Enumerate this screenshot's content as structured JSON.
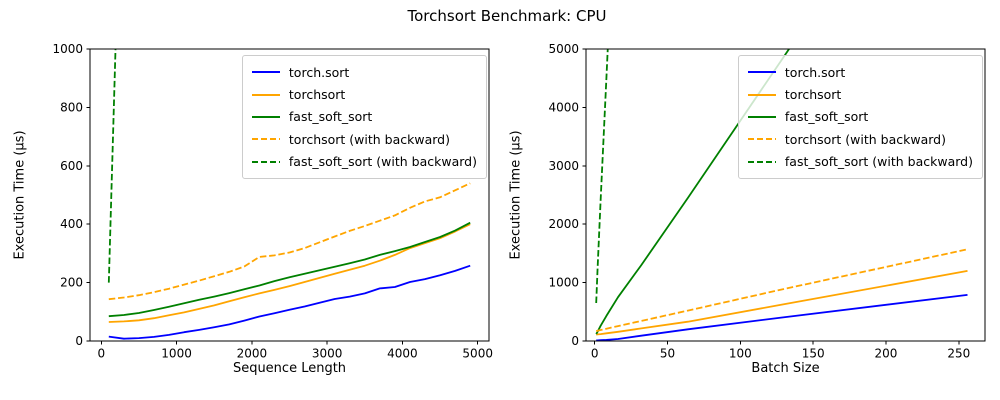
{
  "title": "Torchsort Benchmark: CPU",
  "colors": {
    "blue": "#0000ff",
    "orange": "#ffa500",
    "green": "#008000",
    "axis": "#000000",
    "legend_border": "#cccccc",
    "background": "#ffffff"
  },
  "legend": {
    "items": [
      {
        "label": "torch.sort",
        "color": "#0000ff",
        "dashed": false
      },
      {
        "label": "torchsort",
        "color": "#ffa500",
        "dashed": false
      },
      {
        "label": "fast_soft_sort",
        "color": "#008000",
        "dashed": false
      },
      {
        "label": "torchsort (with backward)",
        "color": "#ffa500",
        "dashed": true
      },
      {
        "label": "fast_soft_sort (with backward)",
        "color": "#008000",
        "dashed": true
      }
    ]
  },
  "chart_data": [
    {
      "type": "line",
      "xlabel": "Sequence Length",
      "ylabel": "Execution Time (µs)",
      "xlim": [
        -150,
        5150
      ],
      "ylim": [
        0,
        1000
      ],
      "xticks": [
        0,
        1000,
        2000,
        3000,
        4000,
        5000
      ],
      "yticks": [
        0,
        200,
        400,
        600,
        800,
        1000
      ],
      "grid": false,
      "legend_position": "upper right",
      "series": [
        {
          "name": "torch.sort",
          "color": "#0000ff",
          "style": "solid",
          "x": [
            100,
            300,
            500,
            700,
            900,
            1100,
            1300,
            1500,
            1700,
            1900,
            2100,
            2300,
            2500,
            2700,
            2900,
            3100,
            3300,
            3500,
            3700,
            3900,
            4100,
            4300,
            4500,
            4700,
            4900
          ],
          "y": [
            15,
            8,
            10,
            14,
            21,
            30,
            38,
            47,
            57,
            70,
            84,
            95,
            107,
            118,
            131,
            144,
            152,
            163,
            180,
            185,
            202,
            212,
            225,
            240,
            258
          ]
        },
        {
          "name": "torchsort",
          "color": "#ffa500",
          "style": "solid",
          "x": [
            100,
            300,
            500,
            700,
            900,
            1100,
            1300,
            1500,
            1700,
            1900,
            2100,
            2300,
            2500,
            2700,
            2900,
            3100,
            3300,
            3500,
            3700,
            3900,
            4100,
            4300,
            4500,
            4700,
            4900
          ],
          "y": [
            65,
            67,
            71,
            78,
            88,
            98,
            110,
            122,
            136,
            150,
            163,
            175,
            188,
            202,
            216,
            230,
            244,
            258,
            275,
            295,
            318,
            335,
            352,
            375,
            400
          ]
        },
        {
          "name": "fast_soft_sort",
          "color": "#008000",
          "style": "solid",
          "x": [
            100,
            300,
            500,
            700,
            900,
            1100,
            1300,
            1500,
            1700,
            1900,
            2100,
            2300,
            2500,
            2700,
            2900,
            3100,
            3300,
            3500,
            3700,
            3900,
            4100,
            4300,
            4500,
            4700,
            4900
          ],
          "y": [
            85,
            89,
            96,
            106,
            117,
            129,
            141,
            152,
            164,
            177,
            190,
            205,
            218,
            230,
            242,
            254,
            266,
            279,
            295,
            308,
            322,
            339,
            356,
            378,
            405
          ]
        },
        {
          "name": "torchsort (with backward)",
          "color": "#ffa500",
          "style": "dashed",
          "x": [
            100,
            300,
            500,
            700,
            900,
            1100,
            1300,
            1500,
            1700,
            1900,
            2100,
            2300,
            2500,
            2700,
            2900,
            3100,
            3300,
            3500,
            3700,
            3900,
            4100,
            4300,
            4500,
            4700,
            4900
          ],
          "y": [
            143,
            149,
            157,
            167,
            179,
            193,
            207,
            222,
            237,
            255,
            288,
            293,
            303,
            318,
            338,
            358,
            377,
            394,
            412,
            430,
            456,
            478,
            492,
            516,
            540
          ]
        },
        {
          "name": "fast_soft_sort (with backward)",
          "color": "#008000",
          "style": "dashed",
          "x": [
            100,
            300
          ],
          "y": [
            200,
            2000
          ]
        }
      ]
    },
    {
      "type": "line",
      "xlabel": "Batch Size",
      "ylabel": "Execution Time (µs)",
      "xlim": [
        -6,
        268
      ],
      "ylim": [
        0,
        5000
      ],
      "xticks": [
        0,
        50,
        100,
        150,
        200,
        250
      ],
      "yticks": [
        0,
        1000,
        2000,
        3000,
        4000,
        5000
      ],
      "grid": false,
      "legend_position": "upper right",
      "series": [
        {
          "name": "torch.sort",
          "color": "#0000ff",
          "style": "solid",
          "x": [
            1,
            2,
            4,
            8,
            16,
            32,
            64,
            128,
            256
          ],
          "y": [
            10,
            11,
            13,
            18,
            35,
            90,
            200,
            400,
            790
          ]
        },
        {
          "name": "torchsort",
          "color": "#ffa500",
          "style": "solid",
          "x": [
            1,
            2,
            4,
            8,
            16,
            32,
            64,
            128,
            256
          ],
          "y": [
            110,
            113,
            118,
            132,
            158,
            215,
            330,
            620,
            1200
          ]
        },
        {
          "name": "fast_soft_sort",
          "color": "#008000",
          "style": "solid",
          "x": [
            1,
            2,
            4,
            8,
            16,
            32,
            64,
            128,
            256
          ],
          "y": [
            120,
            160,
            260,
            430,
            750,
            1300,
            2450,
            4800,
            9500
          ]
        },
        {
          "name": "torchsort (with backward)",
          "color": "#ffa500",
          "style": "dashed",
          "x": [
            1,
            2,
            4,
            8,
            16,
            32,
            64,
            128,
            256
          ],
          "y": [
            170,
            176,
            188,
            210,
            255,
            345,
            520,
            880,
            1570
          ]
        },
        {
          "name": "fast_soft_sort (with backward)",
          "color": "#008000",
          "style": "dashed",
          "x": [
            1,
            2,
            4,
            8,
            16
          ],
          "y": [
            650,
            1250,
            2400,
            4500,
            8800
          ]
        }
      ]
    }
  ]
}
